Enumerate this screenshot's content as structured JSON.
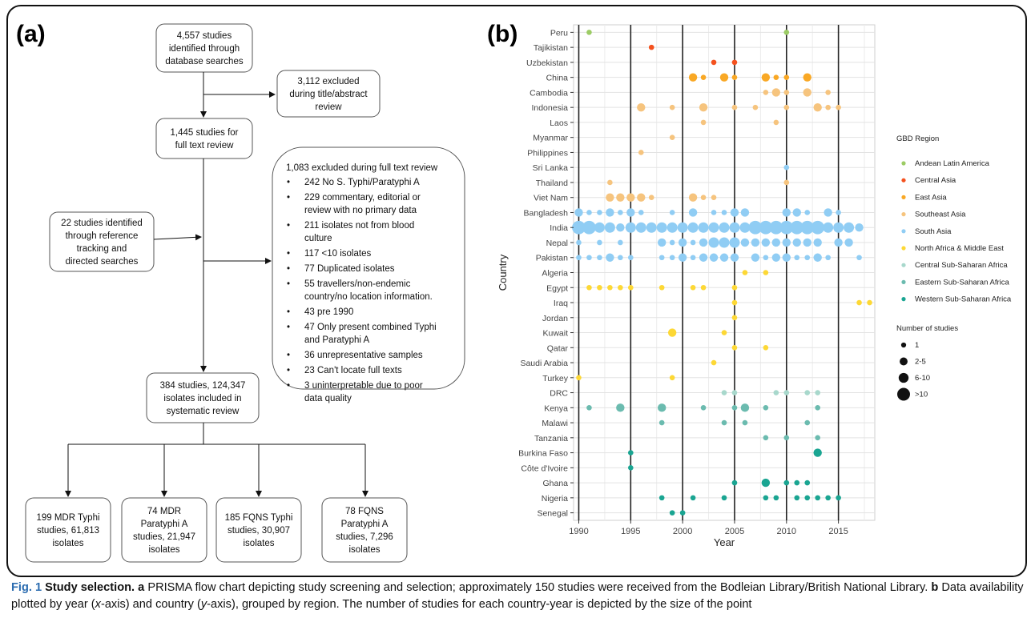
{
  "panel_a": {
    "label": "(a)",
    "boxes": {
      "identified": [
        "4,557 studies",
        "identified through",
        "database searches"
      ],
      "excluded_title": [
        "3,112 excluded",
        "during title/abstract",
        "review"
      ],
      "fulltext": [
        "1,445 studies for",
        "full text review"
      ],
      "reference": [
        "22 studies identified",
        "through reference",
        "tracking and",
        "directed searches"
      ],
      "included": [
        "384 studies, 124,347",
        "isolates included in",
        "systematic review"
      ],
      "mdr_typhi": [
        "199 MDR Typhi",
        "studies, 61,813",
        "isolates"
      ],
      "mdr_paratyphi": [
        "74 MDR",
        "Paratyphi A",
        "studies, 21,947",
        "isolates"
      ],
      "fqns_typhi": [
        "185 FQNS Typhi",
        "studies, 30,907",
        "isolates"
      ],
      "fqns_paratyphi": [
        "78 FQNS",
        "Paratyphi A",
        "studies, 7,296",
        "isolates"
      ]
    },
    "excluded_fulltext": {
      "title": "1,083 excluded during full text review",
      "items": [
        [
          "242 No S. Typhi/Paratyphi A"
        ],
        [
          "229 commentary, editorial or",
          "review with no primary data"
        ],
        [
          "211 isolates not from blood",
          "culture"
        ],
        [
          "117 <10 isolates"
        ],
        [
          "77 Duplicated isolates"
        ],
        [
          "55 travellers/non-endemic",
          "country/no location information."
        ],
        [
          "43 pre 1990"
        ],
        [
          "47 Only present combined Typhi",
          "and Paratyphi A"
        ],
        [
          "36 unrepresentative samples"
        ],
        [
          "23 Can't locate full texts"
        ],
        [
          "3 uninterpretable due to poor",
          "data quality"
        ]
      ]
    }
  },
  "panel_b": {
    "label": "(b)"
  },
  "chart_data": {
    "type": "scatter",
    "xlabel": "Year",
    "ylabel": "Country",
    "xlim": [
      1989.5,
      2018.5
    ],
    "x_ticks": [
      1990,
      1995,
      2000,
      2005,
      2010,
      2015
    ],
    "countries": [
      "Peru",
      "Tajikistan",
      "Uzbekistan",
      "China",
      "Cambodia",
      "Indonesia",
      "Laos",
      "Myanmar",
      "Philippines",
      "Sri Lanka",
      "Thailand",
      "Viet Nam",
      "Bangladesh",
      "India",
      "Nepal",
      "Pakistan",
      "Algeria",
      "Egypt",
      "Iraq",
      "Jordan",
      "Kuwait",
      "Qatar",
      "Saudi Arabia",
      "Turkey",
      "DRC",
      "Kenya",
      "Malawi",
      "Tanzania",
      "Burkina Faso",
      "Côte d'Ivoire",
      "Ghana",
      "Nigeria",
      "Senegal"
    ],
    "country_region": {
      "Peru": "Andean Latin America",
      "Tajikistan": "Central Asia",
      "Uzbekistan": "Central Asia",
      "China": "East Asia",
      "Cambodia": "Southeast Asia",
      "Indonesia": "Southeast Asia",
      "Laos": "Southeast Asia",
      "Myanmar": "Southeast Asia",
      "Philippines": "Southeast Asia",
      "Sri Lanka": "South Asia",
      "Thailand": "Southeast Asia",
      "Viet Nam": "Southeast Asia",
      "Bangladesh": "South Asia",
      "India": "South Asia",
      "Nepal": "South Asia",
      "Pakistan": "South Asia",
      "Algeria": "North Africa & Middle East",
      "Egypt": "North Africa & Middle East",
      "Iraq": "North Africa & Middle East",
      "Jordan": "North Africa & Middle East",
      "Kuwait": "North Africa & Middle East",
      "Qatar": "North Africa & Middle East",
      "Saudi Arabia": "North Africa & Middle East",
      "Turkey": "North Africa & Middle East",
      "DRC": "Central Sub-Saharan Africa",
      "Kenya": "Eastern Sub-Saharan Africa",
      "Malawi": "Eastern Sub-Saharan Africa",
      "Tanzania": "Eastern Sub-Saharan Africa",
      "Burkina Faso": "Western Sub-Saharan Africa",
      "Côte d'Ivoire": "Western Sub-Saharan Africa",
      "Ghana": "Western Sub-Saharan Africa",
      "Nigeria": "Western Sub-Saharan Africa",
      "Senegal": "Western Sub-Saharan Africa"
    },
    "legend_region": {
      "title": "GBD Region",
      "entries": [
        {
          "name": "Andean Latin America",
          "color": "#9ccc65"
        },
        {
          "name": "Central Asia",
          "color": "#f4511e"
        },
        {
          "name": "East Asia",
          "color": "#f9a825"
        },
        {
          "name": "Southeast Asia",
          "color": "#f6c47e"
        },
        {
          "name": "South Asia",
          "color": "#90cdf4"
        },
        {
          "name": "North Africa & Middle East",
          "color": "#fdd835"
        },
        {
          "name": "Central Sub-Saharan Africa",
          "color": "#a8d8cc"
        },
        {
          "name": "Eastern Sub-Saharan Africa",
          "color": "#6bbbaf"
        },
        {
          "name": "Western Sub-Saharan Africa",
          "color": "#1aa592"
        }
      ]
    },
    "legend_size": {
      "title": "Number of studies",
      "entries": [
        {
          "label": "1",
          "size": 1
        },
        {
          "label": "2-5",
          "size": 2
        },
        {
          "label": "6-10",
          "size": 3
        },
        {
          "label": ">10",
          "size": 4
        }
      ]
    },
    "points": [
      [
        "Peru",
        1991,
        1
      ],
      [
        "Peru",
        2010,
        1
      ],
      [
        "Tajikistan",
        1997,
        1
      ],
      [
        "Uzbekistan",
        2003,
        1
      ],
      [
        "Uzbekistan",
        2005,
        1
      ],
      [
        "China",
        2001,
        2
      ],
      [
        "China",
        2002,
        1
      ],
      [
        "China",
        2004,
        2
      ],
      [
        "China",
        2005,
        1
      ],
      [
        "China",
        2008,
        2
      ],
      [
        "China",
        2009,
        1
      ],
      [
        "China",
        2010,
        1
      ],
      [
        "China",
        2012,
        2
      ],
      [
        "Cambodia",
        2008,
        1
      ],
      [
        "Cambodia",
        2009,
        2
      ],
      [
        "Cambodia",
        2010,
        1
      ],
      [
        "Cambodia",
        2012,
        2
      ],
      [
        "Cambodia",
        2014,
        1
      ],
      [
        "Indonesia",
        1996,
        2
      ],
      [
        "Indonesia",
        1999,
        1
      ],
      [
        "Indonesia",
        2002,
        2
      ],
      [
        "Indonesia",
        2005,
        1
      ],
      [
        "Indonesia",
        2007,
        1
      ],
      [
        "Indonesia",
        2010,
        1
      ],
      [
        "Indonesia",
        2013,
        2
      ],
      [
        "Indonesia",
        2014,
        1
      ],
      [
        "Indonesia",
        2015,
        1
      ],
      [
        "Laos",
        2002,
        1
      ],
      [
        "Laos",
        2009,
        1
      ],
      [
        "Myanmar",
        1999,
        1
      ],
      [
        "Philippines",
        1996,
        1
      ],
      [
        "Sri Lanka",
        2010,
        1
      ],
      [
        "Thailand",
        1993,
        1
      ],
      [
        "Thailand",
        2010,
        1
      ],
      [
        "Viet Nam",
        1993,
        2
      ],
      [
        "Viet Nam",
        1994,
        2
      ],
      [
        "Viet Nam",
        1995,
        2
      ],
      [
        "Viet Nam",
        1996,
        2
      ],
      [
        "Viet Nam",
        1997,
        1
      ],
      [
        "Viet Nam",
        2001,
        2
      ],
      [
        "Viet Nam",
        2002,
        1
      ],
      [
        "Viet Nam",
        2003,
        1
      ],
      [
        "Bangladesh",
        1990,
        2
      ],
      [
        "Bangladesh",
        1991,
        1
      ],
      [
        "Bangladesh",
        1992,
        1
      ],
      [
        "Bangladesh",
        1993,
        2
      ],
      [
        "Bangladesh",
        1994,
        1
      ],
      [
        "Bangladesh",
        1995,
        2
      ],
      [
        "Bangladesh",
        1996,
        1
      ],
      [
        "Bangladesh",
        1999,
        1
      ],
      [
        "Bangladesh",
        2001,
        2
      ],
      [
        "Bangladesh",
        2003,
        1
      ],
      [
        "Bangladesh",
        2004,
        1
      ],
      [
        "Bangladesh",
        2005,
        2
      ],
      [
        "Bangladesh",
        2006,
        2
      ],
      [
        "Bangladesh",
        2010,
        2
      ],
      [
        "Bangladesh",
        2011,
        2
      ],
      [
        "Bangladesh",
        2012,
        1
      ],
      [
        "Bangladesh",
        2014,
        2
      ],
      [
        "Bangladesh",
        2015,
        1
      ],
      [
        "India",
        1990,
        4
      ],
      [
        "India",
        1991,
        4
      ],
      [
        "India",
        1992,
        3
      ],
      [
        "India",
        1993,
        3
      ],
      [
        "India",
        1994,
        2
      ],
      [
        "India",
        1995,
        3
      ],
      [
        "India",
        1996,
        3
      ],
      [
        "India",
        1997,
        3
      ],
      [
        "India",
        1998,
        3
      ],
      [
        "India",
        1999,
        3
      ],
      [
        "India",
        2000,
        3
      ],
      [
        "India",
        2001,
        3
      ],
      [
        "India",
        2002,
        3
      ],
      [
        "India",
        2003,
        3
      ],
      [
        "India",
        2004,
        3
      ],
      [
        "India",
        2005,
        3
      ],
      [
        "India",
        2006,
        3
      ],
      [
        "India",
        2007,
        4
      ],
      [
        "India",
        2008,
        4
      ],
      [
        "India",
        2009,
        4
      ],
      [
        "India",
        2010,
        4
      ],
      [
        "India",
        2011,
        4
      ],
      [
        "India",
        2012,
        4
      ],
      [
        "India",
        2013,
        4
      ],
      [
        "India",
        2014,
        3
      ],
      [
        "India",
        2015,
        3
      ],
      [
        "India",
        2016,
        3
      ],
      [
        "India",
        2017,
        2
      ],
      [
        "Nepal",
        1990,
        1
      ],
      [
        "Nepal",
        1992,
        1
      ],
      [
        "Nepal",
        1994,
        1
      ],
      [
        "Nepal",
        1998,
        2
      ],
      [
        "Nepal",
        1999,
        1
      ],
      [
        "Nepal",
        2000,
        2
      ],
      [
        "Nepal",
        2001,
        1
      ],
      [
        "Nepal",
        2002,
        2
      ],
      [
        "Nepal",
        2003,
        3
      ],
      [
        "Nepal",
        2004,
        3
      ],
      [
        "Nepal",
        2005,
        3
      ],
      [
        "Nepal",
        2006,
        2
      ],
      [
        "Nepal",
        2007,
        2
      ],
      [
        "Nepal",
        2008,
        2
      ],
      [
        "Nepal",
        2009,
        2
      ],
      [
        "Nepal",
        2010,
        2
      ],
      [
        "Nepal",
        2011,
        2
      ],
      [
        "Nepal",
        2012,
        2
      ],
      [
        "Nepal",
        2013,
        2
      ],
      [
        "Nepal",
        2015,
        2
      ],
      [
        "Nepal",
        2016,
        2
      ],
      [
        "Pakistan",
        1990,
        1
      ],
      [
        "Pakistan",
        1991,
        1
      ],
      [
        "Pakistan",
        1992,
        1
      ],
      [
        "Pakistan",
        1993,
        2
      ],
      [
        "Pakistan",
        1994,
        1
      ],
      [
        "Pakistan",
        1995,
        1
      ],
      [
        "Pakistan",
        1998,
        1
      ],
      [
        "Pakistan",
        1999,
        1
      ],
      [
        "Pakistan",
        2000,
        2
      ],
      [
        "Pakistan",
        2001,
        1
      ],
      [
        "Pakistan",
        2002,
        2
      ],
      [
        "Pakistan",
        2003,
        2
      ],
      [
        "Pakistan",
        2004,
        2
      ],
      [
        "Pakistan",
        2005,
        2
      ],
      [
        "Pakistan",
        2007,
        2
      ],
      [
        "Pakistan",
        2008,
        1
      ],
      [
        "Pakistan",
        2009,
        2
      ],
      [
        "Pakistan",
        2010,
        2
      ],
      [
        "Pakistan",
        2011,
        1
      ],
      [
        "Pakistan",
        2012,
        1
      ],
      [
        "Pakistan",
        2013,
        2
      ],
      [
        "Pakistan",
        2014,
        1
      ],
      [
        "Pakistan",
        2017,
        1
      ],
      [
        "Algeria",
        2006,
        1
      ],
      [
        "Algeria",
        2008,
        1
      ],
      [
        "Egypt",
        1991,
        1
      ],
      [
        "Egypt",
        1992,
        1
      ],
      [
        "Egypt",
        1993,
        1
      ],
      [
        "Egypt",
        1994,
        1
      ],
      [
        "Egypt",
        1995,
        1
      ],
      [
        "Egypt",
        1998,
        1
      ],
      [
        "Egypt",
        2001,
        1
      ],
      [
        "Egypt",
        2002,
        1
      ],
      [
        "Egypt",
        2005,
        1
      ],
      [
        "Iraq",
        2005,
        1
      ],
      [
        "Iraq",
        2017,
        1
      ],
      [
        "Iraq",
        2018,
        1
      ],
      [
        "Jordan",
        2005,
        1
      ],
      [
        "Kuwait",
        1999,
        2
      ],
      [
        "Kuwait",
        2004,
        1
      ],
      [
        "Qatar",
        2005,
        1
      ],
      [
        "Qatar",
        2008,
        1
      ],
      [
        "Saudi Arabia",
        2003,
        1
      ],
      [
        "Turkey",
        1990,
        1
      ],
      [
        "Turkey",
        1999,
        1
      ],
      [
        "DRC",
        2004,
        1
      ],
      [
        "DRC",
        2005,
        1
      ],
      [
        "DRC",
        2009,
        1
      ],
      [
        "DRC",
        2010,
        1
      ],
      [
        "DRC",
        2012,
        1
      ],
      [
        "DRC",
        2013,
        1
      ],
      [
        "Kenya",
        1991,
        1
      ],
      [
        "Kenya",
        1994,
        2
      ],
      [
        "Kenya",
        1998,
        2
      ],
      [
        "Kenya",
        2002,
        1
      ],
      [
        "Kenya",
        2005,
        1
      ],
      [
        "Kenya",
        2006,
        2
      ],
      [
        "Kenya",
        2008,
        1
      ],
      [
        "Kenya",
        2013,
        1
      ],
      [
        "Malawi",
        1998,
        1
      ],
      [
        "Malawi",
        2004,
        1
      ],
      [
        "Malawi",
        2006,
        1
      ],
      [
        "Malawi",
        2012,
        1
      ],
      [
        "Tanzania",
        2008,
        1
      ],
      [
        "Tanzania",
        2010,
        1
      ],
      [
        "Tanzania",
        2013,
        1
      ],
      [
        "Burkina Faso",
        1995,
        1
      ],
      [
        "Burkina Faso",
        2013,
        2
      ],
      [
        "Côte d'Ivoire",
        1995,
        1
      ],
      [
        "Ghana",
        2005,
        1
      ],
      [
        "Ghana",
        2008,
        2
      ],
      [
        "Ghana",
        2010,
        1
      ],
      [
        "Ghana",
        2011,
        1
      ],
      [
        "Ghana",
        2012,
        1
      ],
      [
        "Nigeria",
        1998,
        1
      ],
      [
        "Nigeria",
        2001,
        1
      ],
      [
        "Nigeria",
        2004,
        1
      ],
      [
        "Nigeria",
        2008,
        1
      ],
      [
        "Nigeria",
        2009,
        1
      ],
      [
        "Nigeria",
        2011,
        1
      ],
      [
        "Nigeria",
        2012,
        1
      ],
      [
        "Nigeria",
        2013,
        1
      ],
      [
        "Nigeria",
        2014,
        1
      ],
      [
        "Nigeria",
        2015,
        1
      ],
      [
        "Senegal",
        1999,
        1
      ],
      [
        "Senegal",
        2000,
        1
      ]
    ]
  },
  "caption": {
    "figno": "Fig. 1",
    "title": "Study selection.",
    "a_label": "a",
    "a_text": "PRISMA flow chart depicting study screening and selection; approximately 150 studies were received from the Bodleian Library/British National Library.",
    "b_label": "b",
    "b_text_1": "Data availability plotted by year (",
    "b_x": "x",
    "b_text_2": "-axis) and country (",
    "b_y": "y",
    "b_text_3": "-axis), grouped by region. The number of studies for each country-year is depicted by the size of the point"
  }
}
